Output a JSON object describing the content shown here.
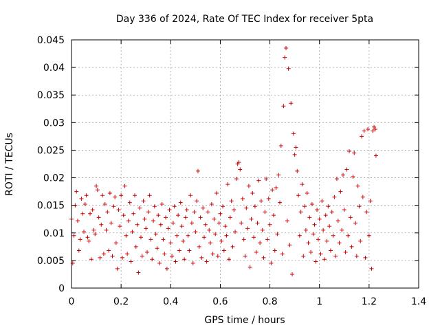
{
  "chart_data": {
    "type": "scatter",
    "title": "Day 336 of 2024, Rate Of TEC Index for receiver 5pta",
    "xlabel": "GPS time / hours",
    "ylabel": "ROTI / TECUs",
    "xlim": [
      0,
      1.4
    ],
    "ylim": [
      0,
      0.045
    ],
    "xticks": [
      0,
      0.2,
      0.4,
      0.6,
      0.8,
      1,
      1.2,
      1.4
    ],
    "xtick_labels": [
      "0",
      "0.2",
      "0.4",
      "0.6",
      "0.8",
      "1",
      "1.2",
      "1.4"
    ],
    "yticks": [
      0,
      0.005,
      0.01,
      0.015,
      0.02,
      0.025,
      0.03,
      0.035,
      0.04,
      0.045
    ],
    "ytick_labels": [
      "0",
      "0.005",
      "0.01",
      "0.015",
      "0.02",
      "0.025",
      "0.03",
      "0.035",
      "0.04",
      "0.045"
    ],
    "grid": true,
    "marker": "+",
    "color": "#cc0000",
    "series": [
      {
        "name": "ROTI",
        "points": [
          [
            0.0,
            0.0125
          ],
          [
            0.005,
            0.0045
          ],
          [
            0.01,
            0.0095
          ],
          [
            0.015,
            0.015
          ],
          [
            0.02,
            0.0175
          ],
          [
            0.025,
            0.0122
          ],
          [
            0.03,
            0.0068
          ],
          [
            0.035,
            0.0088
          ],
          [
            0.04,
            0.0162
          ],
          [
            0.045,
            0.0135
          ],
          [
            0.05,
            0.0102
          ],
          [
            0.055,
            0.0152
          ],
          [
            0.06,
            0.0168
          ],
          [
            0.065,
            0.0092
          ],
          [
            0.07,
            0.0085
          ],
          [
            0.075,
            0.0135
          ],
          [
            0.08,
            0.0052
          ],
          [
            0.085,
            0.0142
          ],
          [
            0.09,
            0.0105
          ],
          [
            0.095,
            0.0098
          ],
          [
            0.1,
            0.0185
          ],
          [
            0.105,
            0.0178
          ],
          [
            0.11,
            0.0128
          ],
          [
            0.115,
            0.0055
          ],
          [
            0.12,
            0.0115
          ],
          [
            0.125,
            0.0168
          ],
          [
            0.13,
            0.0062
          ],
          [
            0.135,
            0.0152
          ],
          [
            0.14,
            0.0105
          ],
          [
            0.145,
            0.0138
          ],
          [
            0.15,
            0.0068
          ],
          [
            0.155,
            0.0172
          ],
          [
            0.16,
            0.0118
          ],
          [
            0.165,
            0.0058
          ],
          [
            0.17,
            0.0148
          ],
          [
            0.175,
            0.0165
          ],
          [
            0.18,
            0.0082
          ],
          [
            0.185,
            0.0035
          ],
          [
            0.19,
            0.0142
          ],
          [
            0.195,
            0.0112
          ],
          [
            0.2,
            0.0168
          ],
          [
            0.205,
            0.0055
          ],
          [
            0.21,
            0.0132
          ],
          [
            0.215,
            0.0185
          ],
          [
            0.22,
            0.0095
          ],
          [
            0.225,
            0.0062
          ],
          [
            0.23,
            0.0122
          ],
          [
            0.235,
            0.0155
          ],
          [
            0.24,
            0.0048
          ],
          [
            0.245,
            0.0102
          ],
          [
            0.25,
            0.0135
          ],
          [
            0.255,
            0.0168
          ],
          [
            0.26,
            0.0075
          ],
          [
            0.265,
            0.0115
          ],
          [
            0.27,
            0.0028
          ],
          [
            0.275,
            0.0145
          ],
          [
            0.28,
            0.0092
          ],
          [
            0.285,
            0.0058
          ],
          [
            0.29,
            0.0158
          ],
          [
            0.295,
            0.0125
          ],
          [
            0.3,
            0.0108
          ],
          [
            0.305,
            0.0065
          ],
          [
            0.31,
            0.0138
          ],
          [
            0.315,
            0.0168
          ],
          [
            0.32,
            0.0088
          ],
          [
            0.325,
            0.0052
          ],
          [
            0.33,
            0.0122
          ],
          [
            0.335,
            0.0148
          ],
          [
            0.34,
            0.0098
          ],
          [
            0.345,
            0.0072
          ],
          [
            0.35,
            0.0132
          ],
          [
            0.355,
            0.0045
          ],
          [
            0.36,
            0.0115
          ],
          [
            0.365,
            0.0152
          ],
          [
            0.37,
            0.0088
          ],
          [
            0.375,
            0.0062
          ],
          [
            0.38,
            0.0128
          ],
          [
            0.385,
            0.0035
          ],
          [
            0.39,
            0.0108
          ],
          [
            0.395,
            0.0142
          ],
          [
            0.4,
            0.0082
          ],
          [
            0.405,
            0.0058
          ],
          [
            0.41,
            0.0118
          ],
          [
            0.415,
            0.0148
          ],
          [
            0.42,
            0.0048
          ],
          [
            0.425,
            0.0095
          ],
          [
            0.43,
            0.0132
          ],
          [
            0.435,
            0.0068
          ],
          [
            0.44,
            0.0155
          ],
          [
            0.445,
            0.0112
          ],
          [
            0.45,
            0.0085
          ],
          [
            0.455,
            0.0052
          ],
          [
            0.46,
            0.0128
          ],
          [
            0.465,
            0.0142
          ],
          [
            0.47,
            0.0095
          ],
          [
            0.475,
            0.0068
          ],
          [
            0.48,
            0.0168
          ],
          [
            0.485,
            0.0118
          ],
          [
            0.49,
            0.0045
          ],
          [
            0.495,
            0.0138
          ],
          [
            0.5,
            0.0102
          ],
          [
            0.505,
            0.0158
          ],
          [
            0.51,
            0.0212
          ],
          [
            0.515,
            0.0075
          ],
          [
            0.52,
            0.0128
          ],
          [
            0.525,
            0.0055
          ],
          [
            0.53,
            0.0145
          ],
          [
            0.535,
            0.0092
          ],
          [
            0.54,
            0.0115
          ],
          [
            0.545,
            0.0048
          ],
          [
            0.55,
            0.0138
          ],
          [
            0.555,
            0.0105
          ],
          [
            0.56,
            0.0082
          ],
          [
            0.565,
            0.0152
          ],
          [
            0.57,
            0.0062
          ],
          [
            0.575,
            0.0125
          ],
          [
            0.58,
            0.0098
          ],
          [
            0.585,
            0.0172
          ],
          [
            0.59,
            0.0058
          ],
          [
            0.595,
            0.0118
          ],
          [
            0.6,
            0.0135
          ],
          [
            0.605,
            0.0085
          ],
          [
            0.61,
            0.0148
          ],
          [
            0.615,
            0.0068
          ],
          [
            0.62,
            0.0112
          ],
          [
            0.625,
            0.0095
          ],
          [
            0.63,
            0.0188
          ],
          [
            0.635,
            0.0052
          ],
          [
            0.64,
            0.0128
          ],
          [
            0.645,
            0.0158
          ],
          [
            0.65,
            0.0075
          ],
          [
            0.655,
            0.0142
          ],
          [
            0.66,
            0.0102
          ],
          [
            0.665,
            0.0198
          ],
          [
            0.67,
            0.0225
          ],
          [
            0.675,
            0.0228
          ],
          [
            0.68,
            0.0215
          ],
          [
            0.685,
            0.0118
          ],
          [
            0.69,
            0.0162
          ],
          [
            0.695,
            0.0088
          ],
          [
            0.7,
            0.0058
          ],
          [
            0.705,
            0.0145
          ],
          [
            0.71,
            0.0108
          ],
          [
            0.715,
            0.0185
          ],
          [
            0.72,
            0.0038
          ],
          [
            0.725,
            0.0125
          ],
          [
            0.73,
            0.0172
          ],
          [
            0.735,
            0.0092
          ],
          [
            0.74,
            0.0148
          ],
          [
            0.745,
            0.0065
          ],
          [
            0.75,
            0.0118
          ],
          [
            0.755,
            0.0195
          ],
          [
            0.76,
            0.0082
          ],
          [
            0.765,
            0.0158
          ],
          [
            0.77,
            0.0105
          ],
          [
            0.775,
            0.0055
          ],
          [
            0.78,
            0.0138
          ],
          [
            0.785,
            0.0198
          ],
          [
            0.79,
            0.0088
          ],
          [
            0.795,
            0.0162
          ],
          [
            0.8,
            0.0115
          ],
          [
            0.805,
            0.0045
          ],
          [
            0.81,
            0.0178
          ],
          [
            0.815,
            0.0132
          ],
          [
            0.82,
            0.0068
          ],
          [
            0.825,
            0.0182
          ],
          [
            0.83,
            0.0098
          ],
          [
            0.835,
            0.0205
          ],
          [
            0.84,
            0.0155
          ],
          [
            0.845,
            0.0258
          ],
          [
            0.85,
            0.0062
          ],
          [
            0.855,
            0.033
          ],
          [
            0.86,
            0.0418
          ],
          [
            0.865,
            0.0435
          ],
          [
            0.87,
            0.0122
          ],
          [
            0.875,
            0.0398
          ],
          [
            0.88,
            0.0078
          ],
          [
            0.885,
            0.0335
          ],
          [
            0.89,
            0.0025
          ],
          [
            0.895,
            0.028
          ],
          [
            0.9,
            0.0242
          ],
          [
            0.905,
            0.0255
          ],
          [
            0.91,
            0.0212
          ],
          [
            0.915,
            0.0168
          ],
          [
            0.92,
            0.0095
          ],
          [
            0.925,
            0.0138
          ],
          [
            0.93,
            0.0188
          ],
          [
            0.935,
            0.0058
          ],
          [
            0.94,
            0.0148
          ],
          [
            0.945,
            0.0105
          ],
          [
            0.95,
            0.0172
          ],
          [
            0.955,
            0.0082
          ],
          [
            0.96,
            0.0128
          ],
          [
            0.965,
            0.0065
          ],
          [
            0.97,
            0.0152
          ],
          [
            0.975,
            0.0098
          ],
          [
            0.98,
            0.0115
          ],
          [
            0.985,
            0.0048
          ],
          [
            0.99,
            0.0142
          ],
          [
            0.995,
            0.0088
          ],
          [
            1.0,
            0.0125
          ],
          [
            1.005,
            0.0062
          ],
          [
            1.01,
            0.0158
          ],
          [
            1.015,
            0.0105
          ],
          [
            1.02,
            0.0052
          ],
          [
            1.025,
            0.0132
          ],
          [
            1.03,
            0.0085
          ],
          [
            1.035,
            0.0148
          ],
          [
            1.04,
            0.0112
          ],
          [
            1.045,
            0.0068
          ],
          [
            1.05,
            0.0138
          ],
          [
            1.055,
            0.0095
          ],
          [
            1.06,
            0.0165
          ],
          [
            1.065,
            0.0058
          ],
          [
            1.07,
            0.0198
          ],
          [
            1.075,
            0.0122
          ],
          [
            1.08,
            0.0082
          ],
          [
            1.085,
            0.0175
          ],
          [
            1.09,
            0.0105
          ],
          [
            1.095,
            0.0205
          ],
          [
            1.1,
            0.0142
          ],
          [
            1.105,
            0.0065
          ],
          [
            1.11,
            0.0215
          ],
          [
            1.115,
            0.0095
          ],
          [
            1.12,
            0.0248
          ],
          [
            1.125,
            0.0128
          ],
          [
            1.13,
            0.0075
          ],
          [
            1.135,
            0.0202
          ],
          [
            1.14,
            0.0245
          ],
          [
            1.145,
            0.0118
          ],
          [
            1.15,
            0.0058
          ],
          [
            1.155,
            0.0185
          ],
          [
            1.16,
            0.0148
          ],
          [
            1.165,
            0.0085
          ],
          [
            1.17,
            0.0275
          ],
          [
            1.175,
            0.0165
          ],
          [
            1.18,
            0.0285
          ],
          [
            1.185,
            0.0055
          ],
          [
            1.19,
            0.0138
          ],
          [
            1.195,
            0.0288
          ],
          [
            1.2,
            0.0095
          ],
          [
            1.205,
            0.0158
          ],
          [
            1.21,
            0.0035
          ],
          [
            1.215,
            0.0285
          ],
          [
            1.22,
            0.0292
          ],
          [
            1.225,
            0.0288
          ],
          [
            1.228,
            0.024
          ]
        ]
      }
    ]
  }
}
